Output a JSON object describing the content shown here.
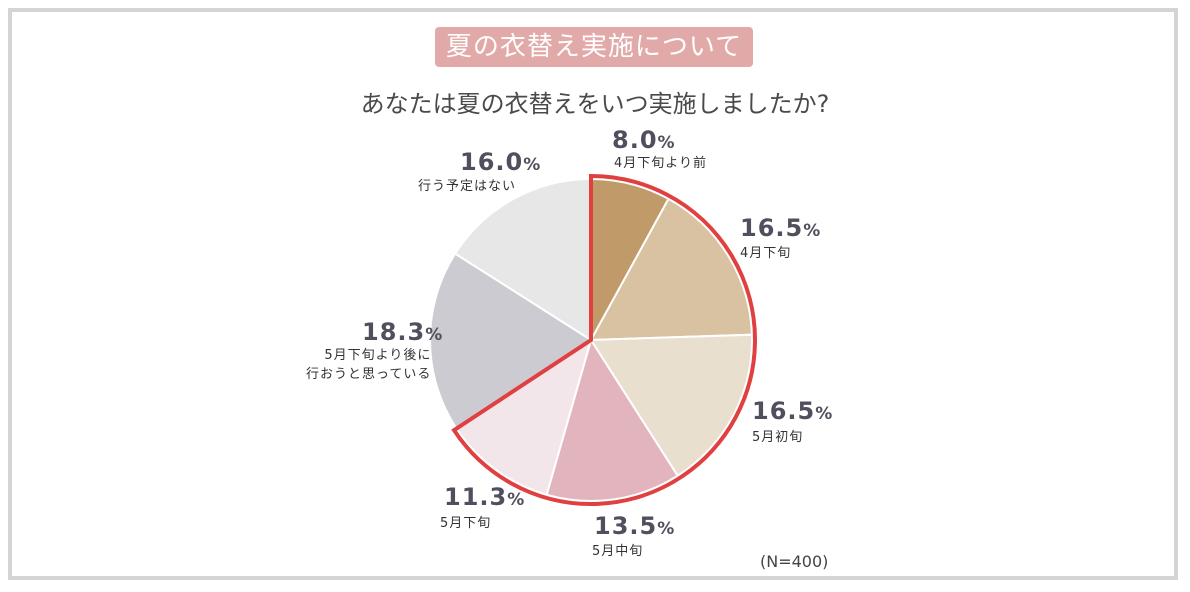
{
  "banner": "夏の衣替え実施について",
  "note": "(N=400)",
  "chart_data": {
    "type": "pie",
    "title": "あなたは夏の衣替えをいつ実施しましたか?",
    "unit": "%",
    "slices": [
      {
        "label": "4月下旬より前",
        "value": 8.0,
        "display": "8.0",
        "color": "#c09a68"
      },
      {
        "label": "4月下旬",
        "value": 16.5,
        "display": "16.5",
        "color": "#d8c2a1"
      },
      {
        "label": "5月初旬",
        "value": 16.5,
        "display": "16.5",
        "color": "#e9dfce"
      },
      {
        "label": "5月中旬",
        "value": 13.5,
        "display": "13.5",
        "color": "#e2b4be"
      },
      {
        "label": "5月下旬",
        "value": 11.3,
        "display": "11.3",
        "color": "#f3e6ea"
      },
      {
        "label": "5月下旬より後に\n行おうと思っている",
        "value": 18.3,
        "display": "18.3",
        "color": "#cccbd1"
      },
      {
        "label": "行う予定はない",
        "value": 16.0,
        "display": "16.0",
        "color": "#e7e7e7"
      }
    ],
    "highlight": {
      "from_index": 0,
      "to_index": 4,
      "color": "#e04040"
    }
  }
}
